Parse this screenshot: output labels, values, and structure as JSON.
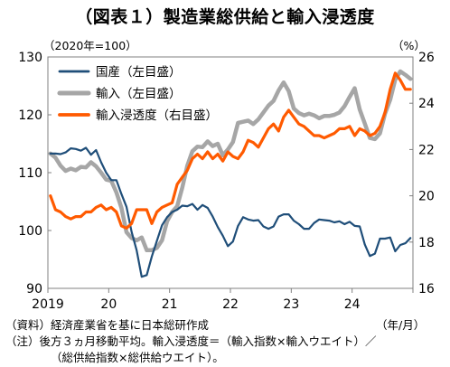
{
  "title": "（図表１）製造業総供給と輸入浸透度",
  "left_unit": "（2020年=100）",
  "right_unit": "（%）",
  "x_unit": "（年/月）",
  "notes": [
    "（資料）経済産業省を基に日本総研作成",
    "（注）後方３ヵ月移動平均。輸入浸透度＝（輸入指数×輸入ウエイト）／",
    "（総供給指数×総供給ウエイト）。"
  ],
  "chart_data": {
    "type": "line",
    "x_tick_labels": [
      "2019",
      "20",
      "21",
      "22",
      "23",
      "24"
    ],
    "y_left_ticks": [
      90,
      100,
      110,
      120,
      130
    ],
    "y_right_ticks": [
      16,
      18,
      20,
      22,
      24,
      26
    ],
    "ylim_left": [
      90,
      130
    ],
    "ylim_right": [
      16,
      26
    ],
    "legend": "top-left",
    "grid": false,
    "series": [
      {
        "name": "国産（左目盛）",
        "axis": "left",
        "color": "#1f4e79",
        "values": [
          113.3,
          113.3,
          113.2,
          113.5,
          114.2,
          114.1,
          113.8,
          114.3,
          113.1,
          113.9,
          111.8,
          110.0,
          108.7,
          108.7,
          106.3,
          104.1,
          99.8,
          96.6,
          92.0,
          92.3,
          95.5,
          98.2,
          100.9,
          102.3,
          103.2,
          103.6,
          104.3,
          104.2,
          104.6,
          103.6,
          104.4,
          103.9,
          102.4,
          100.6,
          99.1,
          97.3,
          98.1,
          100.8,
          102.3,
          101.9,
          101.7,
          101.8,
          100.7,
          100.3,
          100.7,
          102.4,
          102.8,
          102.8,
          101.7,
          101.1,
          100.3,
          100.3,
          101.3,
          101.9,
          101.8,
          101.7,
          101.4,
          101.6,
          101.1,
          101.5,
          100.8,
          100.7,
          97.6,
          95.6,
          96.0,
          98.6,
          98.6,
          98.8,
          96.4,
          97.5,
          97.8,
          98.7
        ]
      },
      {
        "name": "輸入（左目盛）",
        "axis": "left",
        "color": "#a6a6a6",
        "values": [
          113.3,
          112.6,
          111.2,
          110.3,
          110.7,
          110.4,
          111.0,
          110.9,
          111.8,
          111.1,
          110.0,
          108.8,
          108.6,
          106.6,
          103.9,
          99.7,
          98.7,
          98.3,
          98.8,
          96.6,
          96.6,
          97.0,
          98.3,
          101.6,
          103.2,
          104.2,
          107.4,
          111.2,
          113.7,
          114.5,
          114.4,
          115.4,
          114.6,
          115.0,
          113.0,
          114.0,
          115.3,
          118.6,
          118.8,
          119.0,
          118.4,
          119.2,
          120.4,
          121.6,
          122.4,
          124.2,
          125.6,
          124.1,
          121.1,
          120.3,
          119.9,
          120.2,
          119.9,
          119.4,
          119.8,
          119.8,
          120.0,
          120.4,
          121.5,
          123.1,
          124.6,
          120.9,
          118.5,
          116.0,
          115.8,
          116.8,
          120.2,
          122.6,
          126.1,
          127.5,
          126.9,
          126.2
        ]
      },
      {
        "name": "輸入浸透度（右目盛）",
        "axis": "right",
        "color": "#ff5a00",
        "values": [
          20.0,
          19.4,
          19.3,
          19.1,
          19.0,
          19.1,
          19.1,
          19.3,
          19.3,
          19.5,
          19.6,
          19.4,
          19.5,
          19.3,
          18.7,
          18.6,
          18.8,
          19.4,
          19.4,
          19.4,
          18.8,
          19.3,
          19.5,
          19.6,
          19.7,
          20.5,
          20.8,
          21.1,
          21.6,
          21.8,
          21.6,
          21.9,
          21.6,
          21.8,
          21.5,
          21.9,
          21.7,
          21.6,
          21.9,
          22.4,
          22.3,
          22.1,
          22.5,
          22.9,
          23.1,
          22.8,
          23.4,
          23.7,
          23.4,
          23.1,
          23.0,
          22.8,
          22.6,
          22.6,
          22.5,
          22.6,
          22.7,
          22.9,
          22.9,
          23.0,
          22.6,
          22.9,
          22.8,
          22.6,
          22.7,
          23.0,
          23.6,
          24.6,
          25.3,
          25.0,
          24.6,
          24.6
        ]
      }
    ]
  }
}
